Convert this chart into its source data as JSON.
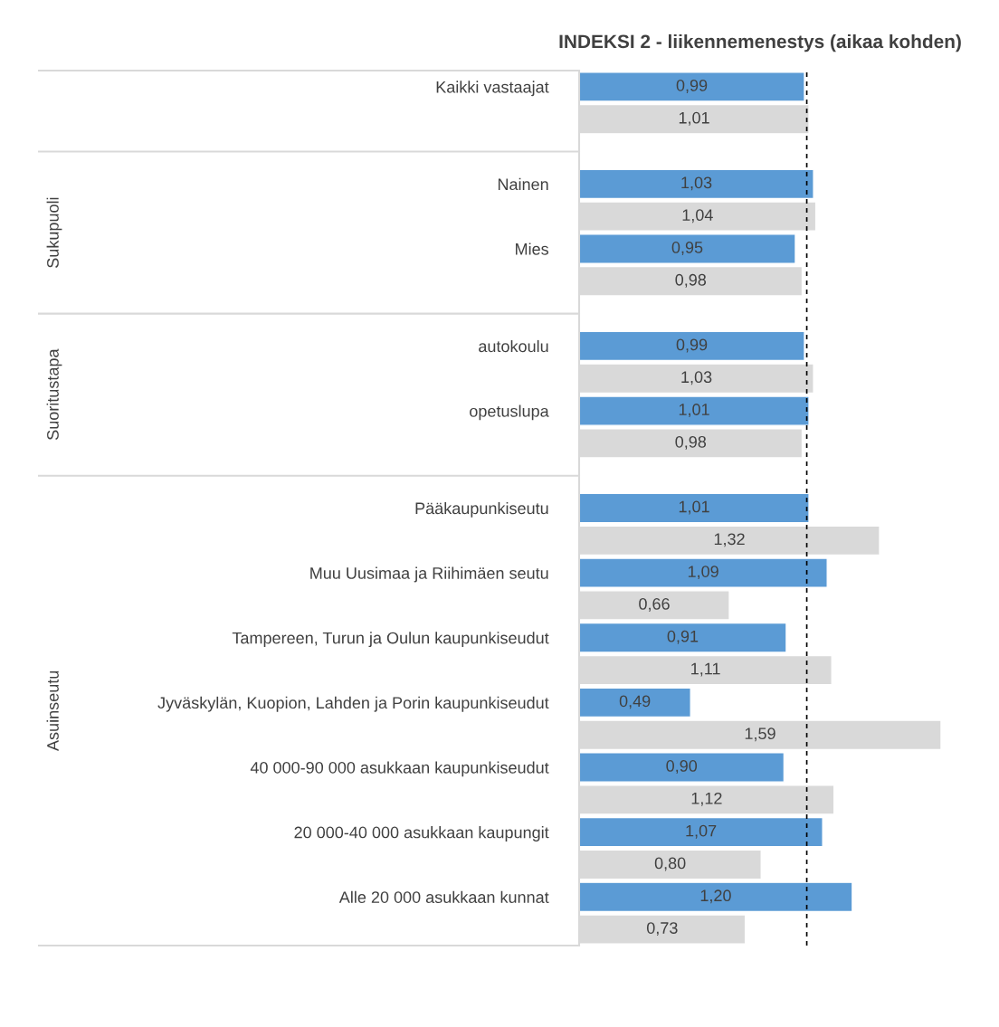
{
  "chart_data": {
    "type": "bar",
    "orientation": "horizontal",
    "title": "INDEKSI 2 - liikennemenestys (aikaa kohden)",
    "categories": [
      "Kaikki vastaajat",
      null,
      null,
      "Nainen",
      null,
      "Mies",
      null,
      null,
      "autokoulu",
      null,
      "opetuslupa",
      null,
      null,
      "Pääkaupunkiseutu",
      null,
      "Muu Uusimaa ja Riihimäen seutu",
      null,
      "Tampereen, Turun ja Oulun kaupunkiseudut",
      null,
      "Jyväskylän, Kuopion, Lahden ja Porin kaupunkiseudut",
      null,
      "40 000-90 000 asukkaan kaupunkiseudut",
      null,
      "20 000-40 000 asukkaan kaupungit",
      null,
      "Alle 20 000 asukkaan kunnat",
      null
    ],
    "series": [
      {
        "color": "#5b9bd5",
        "values": [
          0.99,
          null,
          null,
          1.03,
          null,
          0.95,
          null,
          null,
          0.99,
          null,
          1.01,
          null,
          null,
          1.01,
          null,
          1.09,
          null,
          0.91,
          null,
          0.49,
          null,
          0.9,
          null,
          1.07,
          null,
          1.2,
          null
        ],
        "value_labels": [
          "0,99",
          null,
          null,
          "1,03",
          null,
          "0,95",
          null,
          null,
          "0,99",
          null,
          "1,01",
          null,
          null,
          "1,01",
          null,
          "1,09",
          null,
          "0,91",
          null,
          "0,49",
          null,
          "0,90",
          null,
          "1,07",
          null,
          "1,20",
          null
        ]
      },
      {
        "color": "#d9d9d9",
        "values": [
          null,
          1.01,
          null,
          null,
          1.04,
          null,
          0.98,
          null,
          null,
          1.03,
          null,
          0.98,
          null,
          null,
          1.32,
          null,
          0.66,
          null,
          1.11,
          null,
          1.59,
          null,
          1.12,
          null,
          0.8,
          null,
          0.73
        ],
        "value_labels": [
          null,
          "1,01",
          null,
          null,
          "1,04",
          null,
          "0,98",
          null,
          null,
          "1,03",
          null,
          "0,98",
          null,
          null,
          "1,32",
          null,
          "0,66",
          null,
          "1,11",
          null,
          "1,59",
          null,
          "1,12",
          null,
          "0,80",
          null,
          "0,73"
        ]
      }
    ],
    "annotations": [
      "Sukupuoli",
      "Suoritustapa",
      "Asuinseutu"
    ],
    "ref_lines": [
      {
        "axis": "x",
        "value": 1,
        "color": "#000000",
        "line_style": "dashed"
      }
    ],
    "grid": false,
    "legend": false
  }
}
